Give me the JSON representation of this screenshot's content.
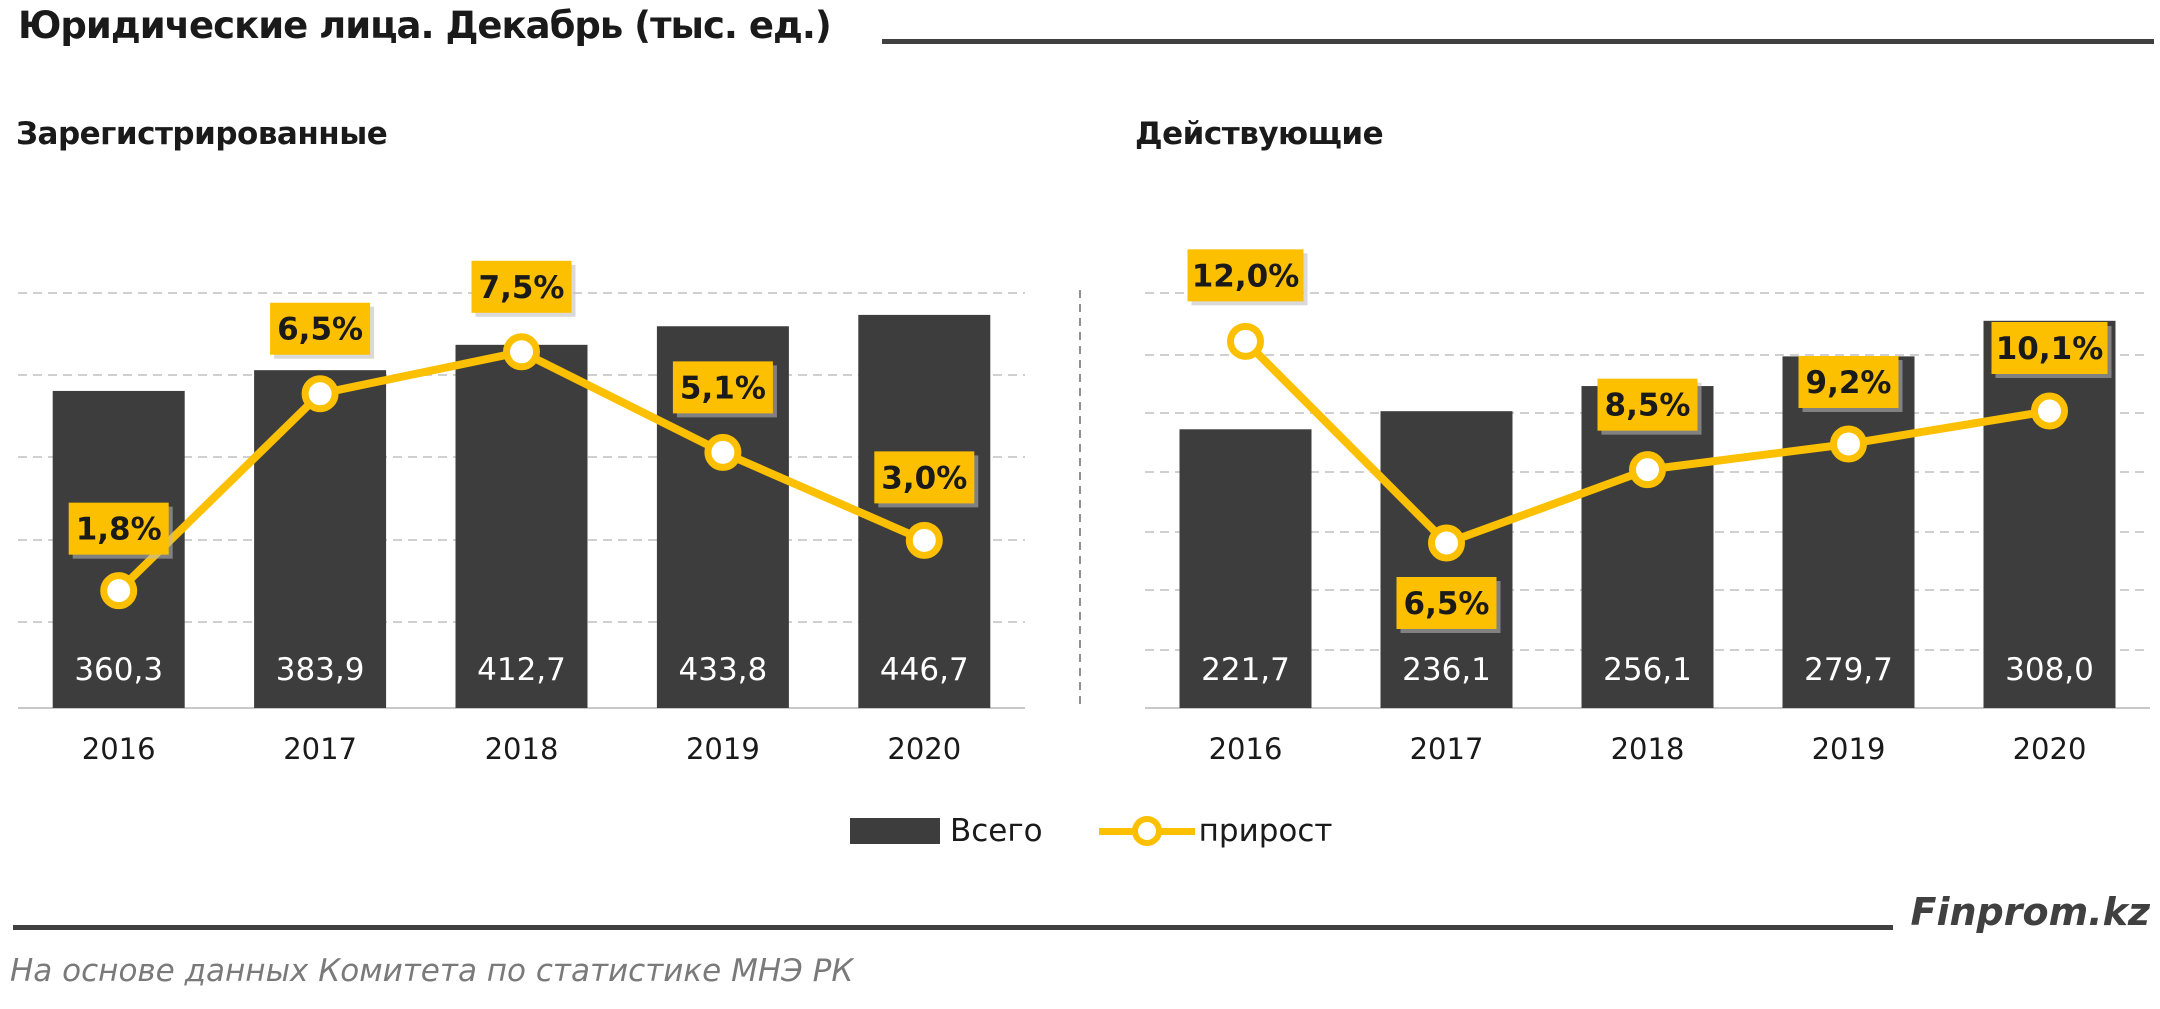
{
  "title": "Юридические лица. Декабрь (тыс. ед.)",
  "footer": {
    "brand": "Finprom.kz",
    "source": "На основе данных  Комитета по статистике МНЭ РК"
  },
  "legend": {
    "bar_label": "Всего",
    "line_label": "прирост"
  },
  "colors": {
    "bar": "#3d3d3d",
    "line": "#fcc000",
    "label_bg": "#fcc000",
    "bar_text": "#ffffff",
    "grid": "#d0d0d0"
  },
  "chart_data": [
    {
      "type": "bar+line",
      "title": "Зарегистрированные",
      "categories": [
        "2016",
        "2017",
        "2018",
        "2019",
        "2020"
      ],
      "series": [
        {
          "name": "Всего",
          "type": "bar",
          "values": [
            360.3,
            383.9,
            412.7,
            433.8,
            446.7
          ],
          "labels": [
            "360,3",
            "383,9",
            "412,7",
            "433,8",
            "446,7"
          ]
        },
        {
          "name": "прирост",
          "type": "line",
          "values": [
            1.8,
            6.5,
            7.5,
            5.1,
            3.0
          ],
          "labels": [
            "1,8%",
            "6,5%",
            "7,5%",
            "5,1%",
            "3,0%"
          ]
        }
      ],
      "bar_axis": [
        0,
        500
      ],
      "line_axis": [
        -1,
        9.5
      ]
    },
    {
      "type": "bar+line",
      "title": "Действующие",
      "categories": [
        "2016",
        "2017",
        "2018",
        "2019",
        "2020"
      ],
      "series": [
        {
          "name": "Всего",
          "type": "bar",
          "values": [
            221.7,
            236.1,
            256.1,
            279.7,
            308.0
          ],
          "labels": [
            "221,7",
            "236,1",
            "256,1",
            "279,7",
            "308,0"
          ]
        },
        {
          "name": "прирост",
          "type": "line",
          "values": [
            12.0,
            6.5,
            8.5,
            9.2,
            10.1
          ],
          "labels": [
            "12,0%",
            "6,5%",
            "8,5%",
            "9,2%",
            "10,1%"
          ]
        }
      ],
      "bar_axis": [
        0,
        350
      ],
      "line_axis": [
        2,
        14
      ]
    }
  ]
}
